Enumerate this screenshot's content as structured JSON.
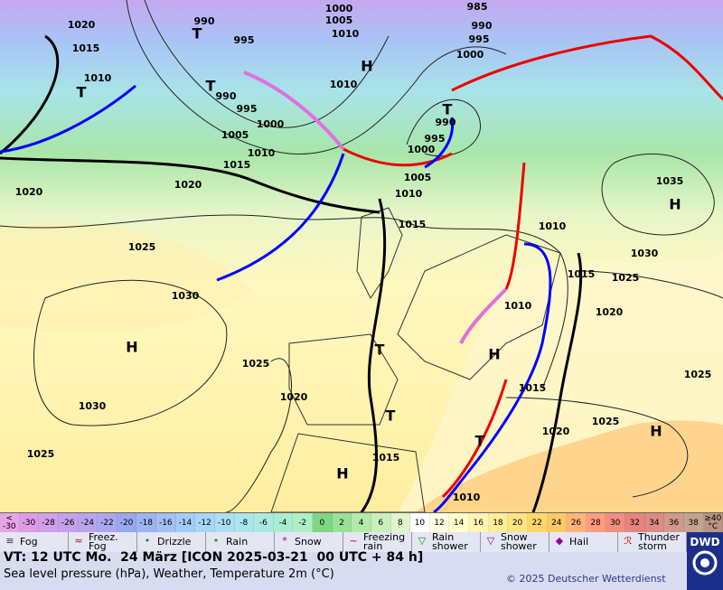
{
  "map": {
    "isobar_labels": [
      1020,
      1015,
      1010,
      990,
      995,
      1000,
      1005,
      1010,
      985,
      990,
      995,
      1000,
      1010,
      990,
      995,
      1000,
      1005,
      1010,
      1015,
      1020,
      1020,
      990,
      995,
      1000,
      1005,
      1010,
      1015,
      1025,
      1030,
      1035,
      1010,
      1030,
      1015,
      1025,
      1020,
      1010,
      1025,
      1020,
      1030,
      1025,
      1015,
      1025,
      1020,
      1025,
      1015,
      1010
    ],
    "pressure_centers": [
      "H",
      "T",
      "T",
      "T",
      "T",
      "H",
      "H",
      "T",
      "T",
      "H",
      "H",
      "H",
      "T"
    ]
  },
  "legend": {
    "temperature_scale": [
      {
        "label": "<\n-30",
        "color": "#e6a6e6"
      },
      {
        "label": "-30",
        "color": "#dd9ce6"
      },
      {
        "label": "-28",
        "color": "#d2a0ea"
      },
      {
        "label": "-26",
        "color": "#c6a0ee"
      },
      {
        "label": "-24",
        "color": "#baa4f0"
      },
      {
        "label": "-22",
        "color": "#aaa8f2"
      },
      {
        "label": "-20",
        "color": "#9aa8f0"
      },
      {
        "label": "-18",
        "color": "#9cb4f4"
      },
      {
        "label": "-16",
        "color": "#a0c0f6"
      },
      {
        "label": "-14",
        "color": "#a4ccf8"
      },
      {
        "label": "-12",
        "color": "#a8d6f8"
      },
      {
        "label": "-10",
        "color": "#aadff4"
      },
      {
        "label": "-8",
        "color": "#aae6ec"
      },
      {
        "label": "-6",
        "color": "#aaeae0"
      },
      {
        "label": "-4",
        "color": "#aaeed2"
      },
      {
        "label": "-2",
        "color": "#aef0c4"
      },
      {
        "label": "0",
        "color": "#7fd87f"
      },
      {
        "label": "2",
        "color": "#98e296"
      },
      {
        "label": "4",
        "color": "#b2eaa8"
      },
      {
        "label": "6",
        "color": "#caf0ba"
      },
      {
        "label": "8",
        "color": "#e0f6cc"
      },
      {
        "label": "10",
        "color": "#ffffff"
      },
      {
        "label": "12",
        "color": "#ffffe2"
      },
      {
        "label": "14",
        "color": "#ffffcc"
      },
      {
        "label": "16",
        "color": "#fff6b2"
      },
      {
        "label": "18",
        "color": "#ffee99"
      },
      {
        "label": "20",
        "color": "#ffe480"
      },
      {
        "label": "22",
        "color": "#ffd868"
      },
      {
        "label": "24",
        "color": "#ffc866"
      },
      {
        "label": "26",
        "color": "#ffb47a"
      },
      {
        "label": "28",
        "color": "#ff9c80"
      },
      {
        "label": "30",
        "color": "#f48c80"
      },
      {
        "label": "32",
        "color": "#e68480"
      },
      {
        "label": "34",
        "color": "#dc8c84"
      },
      {
        "label": "36",
        "color": "#d09a8a"
      },
      {
        "label": "38",
        "color": "#c4a490"
      },
      {
        "label": "≥40\n°C",
        "color": "#b89484"
      }
    ],
    "items": [
      "Fog",
      "Freez.\nFog",
      "Drizzle",
      "Rain",
      "Snow",
      "Freezing\nrain",
      "Rain\nshower",
      "Snow\nshower",
      "Hail",
      "Thunder\nstorm"
    ]
  },
  "footer": {
    "valid_time": "VT: 12 UTC Mo.  24 März [ICON 2025-03-21  00 UTC + 84 h]",
    "description": "Sea level pressure (hPa), Weather, Temperature 2m (°C)",
    "copyright": "© 2025 Deutscher Wetterdienst",
    "logo": "DWD"
  }
}
